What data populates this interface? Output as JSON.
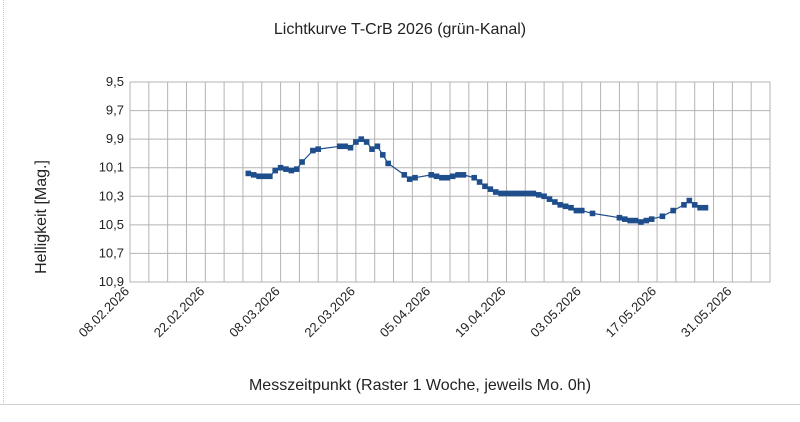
{
  "chart_data": {
    "type": "line",
    "title": "Lichtkurve T-CrB 2026 (grün-Kanal)",
    "xlabel": "Messzeitpunkt (Raster 1 Woche, jeweils Mo. 0h)",
    "ylabel": "Helligkeit [Mag.]",
    "x_tick_labels": [
      "08.02.2026",
      "22.02.2026",
      "08.03.2026",
      "22.03.2026",
      "05.04.2026",
      "19.04.2026",
      "03.05.2026",
      "17.05.2026",
      "31.05.2026"
    ],
    "y_tick_labels": [
      "9,5",
      "9,7",
      "9,9",
      "10,1",
      "10,3",
      "10,5",
      "10,7",
      "10,9"
    ],
    "xlim": [
      "2026-02-08",
      "2026-06-07"
    ],
    "ylim": [
      9.5,
      10.9
    ],
    "y_inverted": true,
    "grid": true,
    "series_color": "#1f4e8c",
    "series": [
      {
        "x": [
          "2026-03-02",
          "2026-03-03",
          "2026-03-04",
          "2026-03-05",
          "2026-03-06",
          "2026-03-07",
          "2026-03-08",
          "2026-03-09",
          "2026-03-10",
          "2026-03-11",
          "2026-03-12",
          "2026-03-14",
          "2026-03-15",
          "2026-03-19",
          "2026-03-20",
          "2026-03-21",
          "2026-03-22",
          "2026-03-23",
          "2026-03-24",
          "2026-03-25",
          "2026-03-26",
          "2026-03-27",
          "2026-03-28",
          "2026-03-31",
          "2026-04-01",
          "2026-04-02",
          "2026-04-05",
          "2026-04-06",
          "2026-04-07",
          "2026-04-08",
          "2026-04-09",
          "2026-04-10",
          "2026-04-11",
          "2026-04-13",
          "2026-04-14",
          "2026-04-15",
          "2026-04-16",
          "2026-04-17",
          "2026-04-18",
          "2026-04-19",
          "2026-04-20",
          "2026-04-21",
          "2026-04-22",
          "2026-04-23",
          "2026-04-24",
          "2026-04-25",
          "2026-04-26",
          "2026-04-27",
          "2026-04-28",
          "2026-04-29",
          "2026-04-30",
          "2026-05-01",
          "2026-05-02",
          "2026-05-03",
          "2026-05-05",
          "2026-05-10",
          "2026-05-11",
          "2026-05-12",
          "2026-05-13",
          "2026-05-14",
          "2026-05-15",
          "2026-05-16",
          "2026-05-18",
          "2026-05-20",
          "2026-05-22",
          "2026-05-23",
          "2026-05-24",
          "2026-05-25",
          "2026-05-26"
        ],
        "y": [
          10.14,
          10.15,
          10.16,
          10.16,
          10.16,
          10.12,
          10.1,
          10.11,
          10.12,
          10.11,
          10.06,
          9.98,
          9.97,
          9.95,
          9.95,
          9.96,
          9.92,
          9.9,
          9.92,
          9.97,
          9.95,
          10.01,
          10.07,
          10.15,
          10.18,
          10.17,
          10.15,
          10.16,
          10.17,
          10.17,
          10.16,
          10.15,
          10.15,
          10.17,
          10.2,
          10.23,
          10.25,
          10.27,
          10.28,
          10.28,
          10.28,
          10.28,
          10.28,
          10.28,
          10.28,
          10.29,
          10.3,
          10.32,
          10.34,
          10.36,
          10.37,
          10.38,
          10.4,
          10.4,
          10.42,
          10.45,
          10.46,
          10.47,
          10.47,
          10.48,
          10.47,
          10.46,
          10.44,
          10.4,
          10.36,
          10.33,
          10.36,
          10.38,
          10.38
        ]
      }
    ]
  }
}
